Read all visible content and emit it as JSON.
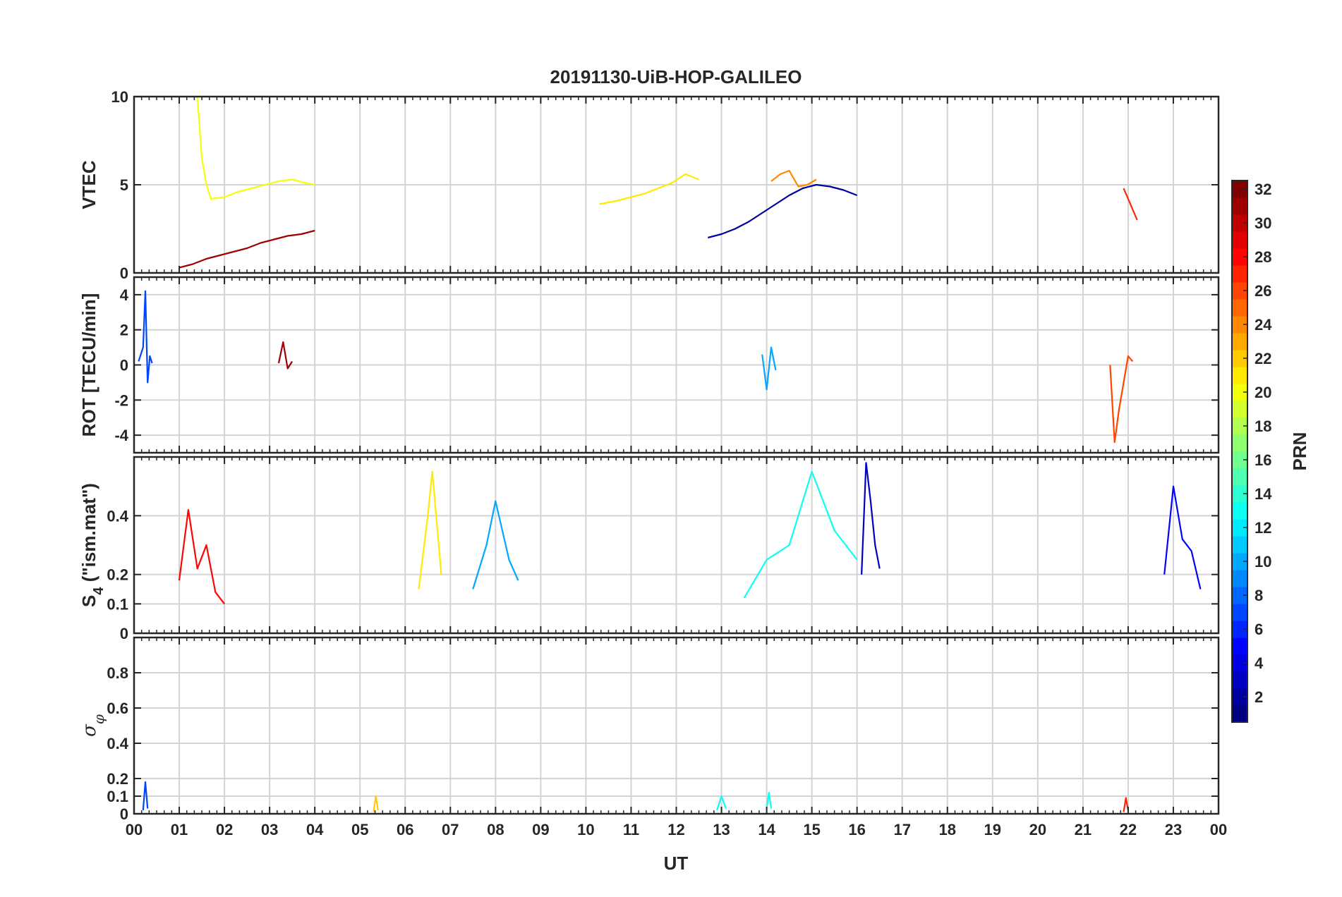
{
  "chart_data": {
    "title": "20191130-UiB-HOP-GALILEO",
    "type": "line",
    "xlabel": "UT",
    "xlim": [
      0,
      24
    ],
    "x_ticks": [
      0,
      1,
      2,
      3,
      4,
      5,
      6,
      7,
      8,
      9,
      10,
      11,
      12,
      13,
      14,
      15,
      16,
      17,
      18,
      19,
      20,
      21,
      22,
      23,
      24
    ],
    "x_tick_labels": [
      "00",
      "01",
      "02",
      "03",
      "04",
      "05",
      "06",
      "07",
      "08",
      "09",
      "10",
      "11",
      "12",
      "13",
      "14",
      "15",
      "16",
      "17",
      "18",
      "19",
      "20",
      "21",
      "22",
      "23",
      "00"
    ],
    "grid": true,
    "panels": [
      {
        "id": "vtec",
        "ylabel": "VTEC",
        "ylim": [
          0,
          10
        ],
        "y_ticks": [
          0,
          5,
          10
        ],
        "y_tick_labels": [
          "0",
          "5",
          "10"
        ],
        "series": [
          {
            "prn": 24,
            "x": [
              14.1,
              14.3,
              14.5,
              14.7,
              14.9,
              15.1
            ],
            "y": [
              5.2,
              5.6,
              5.8,
              4.9,
              5.0,
              5.3
            ]
          },
          {
            "prn": 27,
            "x": [
              21.9,
              22.0,
              22.1,
              22.2
            ],
            "y": [
              4.8,
              4.2,
              3.6,
              3.0
            ]
          },
          {
            "prn": 2,
            "x": [
              12.7,
              13.0,
              13.3,
              13.6,
              13.9,
              14.2,
              14.5,
              14.8,
              15.1,
              15.4,
              15.7,
              16.0
            ],
            "y": [
              2.0,
              2.2,
              2.5,
              2.9,
              3.4,
              3.9,
              4.4,
              4.8,
              5.0,
              4.9,
              4.7,
              4.4
            ]
          },
          {
            "prn": 21,
            "x": [
              10.3,
              10.7,
              11.0,
              11.3,
              11.6,
              11.9,
              12.2,
              12.5
            ],
            "y": [
              3.9,
              4.1,
              4.3,
              4.5,
              4.8,
              5.1,
              5.6,
              5.3
            ]
          },
          {
            "prn": 20,
            "x": [
              1.4,
              1.5,
              1.6,
              1.7,
              2.0,
              2.3,
              2.6,
              2.9,
              3.2,
              3.5,
              3.8,
              4.0
            ],
            "y": [
              10.0,
              6.5,
              5.0,
              4.2,
              4.3,
              4.6,
              4.8,
              5.0,
              5.2,
              5.3,
              5.1,
              5.0
            ]
          },
          {
            "prn": 31,
            "x": [
              1.0,
              1.3,
              1.6,
              1.9,
              2.2,
              2.5,
              2.8,
              3.1,
              3.4,
              3.7,
              4.0
            ],
            "y": [
              0.3,
              0.5,
              0.8,
              1.0,
              1.2,
              1.4,
              1.7,
              1.9,
              2.1,
              2.2,
              2.4
            ]
          }
        ]
      },
      {
        "id": "rot",
        "ylabel": "ROT [TECU/min]",
        "ylim": [
          -5,
          5
        ],
        "y_ticks": [
          -4,
          -2,
          0,
          2,
          4
        ],
        "y_tick_labels": [
          "-4",
          "-2",
          "0",
          "2",
          "4"
        ],
        "series": [
          {
            "prn": 7,
            "x": [
              0.1,
              0.2,
              0.25,
              0.3,
              0.35,
              0.4
            ],
            "y": [
              0.2,
              1.0,
              4.2,
              -1.0,
              0.5,
              0.1
            ]
          },
          {
            "prn": 26,
            "x": [
              21.6,
              21.7,
              21.8,
              21.9,
              22.0,
              22.1
            ],
            "y": [
              0.0,
              -4.4,
              -2.5,
              -1.0,
              0.5,
              0.2
            ]
          },
          {
            "prn": 31,
            "x": [
              3.2,
              3.3,
              3.4,
              3.5
            ],
            "y": [
              0.1,
              1.3,
              -0.2,
              0.2
            ]
          },
          {
            "prn": 10,
            "x": [
              13.9,
              14.0,
              14.1,
              14.2
            ],
            "y": [
              0.6,
              -1.4,
              1.0,
              -0.3
            ]
          }
        ]
      },
      {
        "id": "s4",
        "ylabel": "S4 (\"ism.mat\")",
        "ylabel_main": "S",
        "ylabel_sub": "4",
        "ylabel_rest": " (\"ism.mat\")",
        "ylim": [
          0,
          0.6
        ],
        "y_ticks": [
          0,
          0.1,
          0.2,
          0.4
        ],
        "y_tick_labels": [
          "0",
          "0.1",
          "0.2",
          "0.4"
        ],
        "series": [
          {
            "prn": 28,
            "x": [
              1.0,
              1.2,
              1.4,
              1.6,
              1.8,
              2.0
            ],
            "y": [
              0.18,
              0.42,
              0.22,
              0.3,
              0.14,
              0.1
            ]
          },
          {
            "prn": 3,
            "x": [
              16.1,
              16.2,
              16.3,
              16.4,
              16.5
            ],
            "y": [
              0.2,
              0.58,
              0.45,
              0.3,
              0.22
            ]
          },
          {
            "prn": 5,
            "x": [
              22.8,
              23.0,
              23.2,
              23.4,
              23.6
            ],
            "y": [
              0.2,
              0.5,
              0.32,
              0.28,
              0.15
            ]
          },
          {
            "prn": 13,
            "x": [
              13.5,
              14.0,
              14.5,
              15.0,
              15.5,
              16.0
            ],
            "y": [
              0.12,
              0.25,
              0.3,
              0.55,
              0.35,
              0.25
            ]
          },
          {
            "prn": 21,
            "x": [
              6.3,
              6.5,
              6.6,
              6.8
            ],
            "y": [
              0.15,
              0.4,
              0.55,
              0.2
            ]
          },
          {
            "prn": 10,
            "x": [
              7.5,
              7.8,
              8.0,
              8.3,
              8.5
            ],
            "y": [
              0.15,
              0.3,
              0.45,
              0.25,
              0.18
            ]
          }
        ]
      },
      {
        "id": "sigphi",
        "ylabel": "σφ",
        "ylabel_main": "σ",
        "ylabel_sub": "φ",
        "ylim": [
          0,
          1
        ],
        "y_ticks": [
          0,
          0.1,
          0.2,
          0.4,
          0.6,
          0.8
        ],
        "y_tick_labels": [
          "0",
          "0.1",
          "0.2",
          "0.4",
          "0.6",
          "0.8"
        ],
        "series": [
          {
            "prn": 7,
            "x": [
              0.2,
              0.25,
              0.3
            ],
            "y": [
              0.02,
              0.18,
              0.03
            ]
          },
          {
            "prn": 13,
            "x": [
              12.9,
              13.0,
              13.1
            ],
            "y": [
              0.02,
              0.1,
              0.03
            ]
          },
          {
            "prn": 22,
            "x": [
              5.3,
              5.35,
              5.4
            ],
            "y": [
              0.01,
              0.1,
              0.02
            ]
          },
          {
            "prn": 13,
            "x": [
              14.0,
              14.05,
              14.1
            ],
            "y": [
              0.03,
              0.12,
              0.03
            ]
          },
          {
            "prn": 27,
            "x": [
              21.9,
              21.95,
              22.0
            ],
            "y": [
              0.01,
              0.09,
              0.02
            ]
          }
        ]
      }
    ],
    "colorbar": {
      "label": "PRN",
      "limits": [
        1,
        32
      ],
      "colormap": "jet",
      "ticks": [
        2,
        4,
        6,
        8,
        10,
        12,
        14,
        16,
        18,
        20,
        22,
        24,
        26,
        28,
        30,
        32
      ],
      "tick_labels": [
        "2",
        "4",
        "6",
        "8",
        "10",
        "12",
        "14",
        "16",
        "18",
        "20",
        "22",
        "24",
        "26",
        "28",
        "30",
        "32"
      ]
    }
  }
}
